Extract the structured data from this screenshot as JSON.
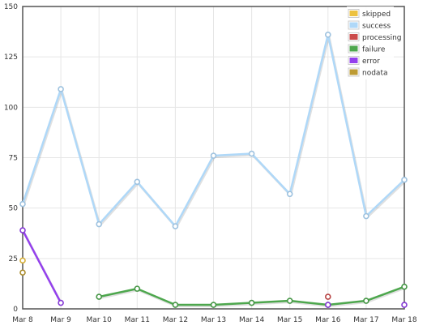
{
  "chart_data": {
    "type": "line",
    "title": "",
    "xlabel": "",
    "ylabel": "",
    "categories": [
      "Mar 8",
      "Mar 9",
      "Mar 10",
      "Mar 11",
      "Mar 12",
      "Mar 13",
      "Mar 14",
      "Mar 15",
      "Mar 16",
      "Mar 17",
      "Mar 18"
    ],
    "ylim": [
      0,
      150
    ],
    "yticks": [
      0,
      25,
      50,
      75,
      100,
      125,
      150
    ],
    "grid": true,
    "legend_position": "top-right",
    "series": [
      {
        "name": "skipped",
        "color": "#edc240",
        "values": [
          24,
          null,
          null,
          null,
          null,
          null,
          null,
          null,
          null,
          null,
          null
        ]
      },
      {
        "name": "success",
        "color": "#afd8f8",
        "values": [
          52,
          109,
          42,
          63,
          41,
          76,
          77,
          57,
          136,
          46,
          64
        ]
      },
      {
        "name": "processing",
        "color": "#cb4b4b",
        "values": [
          null,
          null,
          null,
          null,
          null,
          null,
          null,
          null,
          6,
          null,
          null
        ]
      },
      {
        "name": "failure",
        "color": "#4da74d",
        "values": [
          null,
          null,
          6,
          10,
          2,
          2,
          3,
          4,
          2,
          4,
          11
        ]
      },
      {
        "name": "error",
        "color": "#9440ed",
        "values": [
          39,
          3,
          null,
          null,
          null,
          null,
          null,
          null,
          2,
          null,
          2
        ]
      },
      {
        "name": "nodata",
        "color": "#bd9b33",
        "values": [
          18,
          null,
          null,
          null,
          null,
          null,
          null,
          null,
          null,
          null,
          null
        ]
      }
    ]
  }
}
